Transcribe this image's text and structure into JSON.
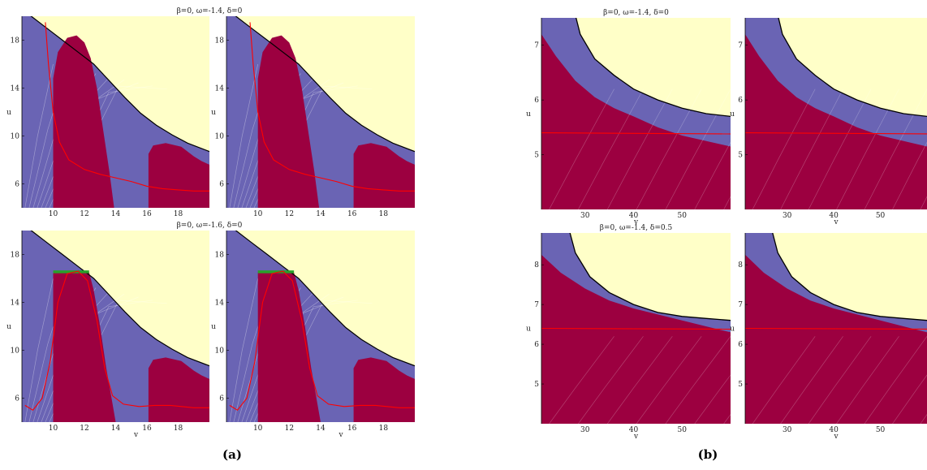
{
  "figure": {
    "captions": [
      "(a)",
      "(b)"
    ]
  },
  "colors": {
    "yellow_region": "#ffffc8",
    "blue_region": "#6a64b4",
    "maroon_region": "#9c0040",
    "red_curve": "#ff0000",
    "green_segment": "#2aa02a",
    "boundary": "#000000"
  },
  "chart_data": [
    {
      "type": "area",
      "id": "a-tl",
      "title": "β=0, ω=-1.4, δ=0",
      "xlabel": "",
      "ylabel": "u",
      "xlim": [
        8,
        20
      ],
      "ylim": [
        4,
        20
      ],
      "xticks": [
        "10",
        "12",
        "14",
        "16",
        "18"
      ],
      "yticks": [
        "6",
        "10",
        "14",
        "18"
      ]
    },
    {
      "type": "area",
      "id": "a-tr",
      "title": "",
      "xlabel": "",
      "ylabel": "u",
      "xlim": [
        8,
        20
      ],
      "ylim": [
        4,
        20
      ],
      "xticks": [
        "10",
        "12",
        "14",
        "16",
        "18"
      ],
      "yticks": [
        "6",
        "10",
        "14",
        "18"
      ]
    },
    {
      "type": "area",
      "id": "a-bl",
      "title": "β=0, ω=-1.6, δ=0",
      "xlabel": "v",
      "ylabel": "u",
      "xlim": [
        8,
        20
      ],
      "ylim": [
        4,
        20
      ],
      "xticks": [
        "10",
        "12",
        "14",
        "16",
        "18"
      ],
      "yticks": [
        "6",
        "10",
        "14",
        "18"
      ]
    },
    {
      "type": "area",
      "id": "a-br",
      "title": "",
      "xlabel": "v",
      "ylabel": "u",
      "xlim": [
        8,
        20
      ],
      "ylim": [
        4,
        20
      ],
      "xticks": [
        "10",
        "12",
        "14",
        "16",
        "18"
      ],
      "yticks": [
        "6",
        "10",
        "14",
        "18"
      ]
    },
    {
      "type": "area",
      "id": "b-tl",
      "title": "β=0, ω=-1.4, δ=0",
      "xlabel": "v",
      "ylabel": "u",
      "xlim": [
        21,
        60
      ],
      "ylim": [
        4,
        7.5
      ],
      "xticks": [
        "30",
        "40",
        "50"
      ],
      "yticks": [
        "5",
        "6",
        "7"
      ]
    },
    {
      "type": "area",
      "id": "b-tr",
      "title": "",
      "xlabel": "v",
      "ylabel": "u",
      "xlim": [
        21,
        60
      ],
      "ylim": [
        4,
        7.5
      ],
      "xticks": [
        "30",
        "40",
        "50"
      ],
      "yticks": [
        "5",
        "6",
        "7"
      ]
    },
    {
      "type": "area",
      "id": "b-bl",
      "title": "β=0, ω=-1.4, δ=0.5",
      "xlabel": "v",
      "ylabel": "u",
      "xlim": [
        21,
        60
      ],
      "ylim": [
        4,
        8.8
      ],
      "xticks": [
        "30",
        "40",
        "50"
      ],
      "yticks": [
        "5",
        "6",
        "7",
        "8"
      ]
    },
    {
      "type": "area",
      "id": "b-br",
      "title": "",
      "xlabel": "v",
      "ylabel": "u",
      "xlim": [
        21,
        60
      ],
      "ylim": [
        4,
        8.8
      ],
      "xticks": [
        "30",
        "40",
        "50"
      ],
      "yticks": [
        "5",
        "6",
        "7",
        "8"
      ]
    }
  ]
}
